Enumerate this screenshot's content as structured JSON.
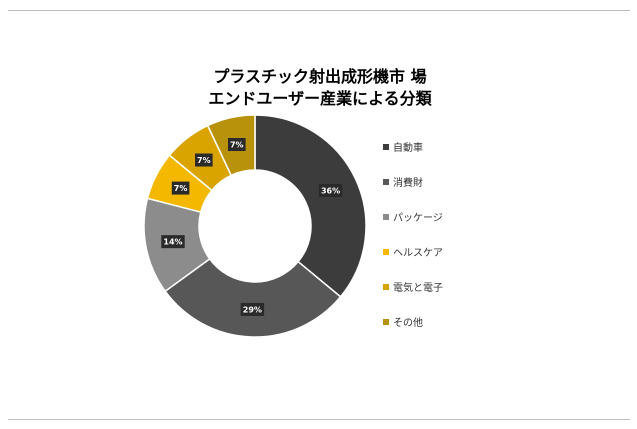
{
  "chart_data": {
    "type": "pie",
    "donut": true,
    "title_lines": [
      "プラスチック射出成形機市 場",
      "エンドユーザー産業による分類"
    ],
    "categories": [
      "自動車",
      "消費財",
      "パッケージ",
      "ヘルスケア",
      "電気と電子",
      "その他"
    ],
    "values": [
      36,
      29,
      14,
      7,
      7,
      7
    ],
    "labels": [
      "36%",
      "29%",
      "14%",
      "7%",
      "7%",
      "7%"
    ],
    "colors": [
      "#3c3c3c",
      "#575757",
      "#8c8c8c",
      "#f5b800",
      "#d9a400",
      "#b8920a"
    ],
    "legend_position": "right"
  }
}
